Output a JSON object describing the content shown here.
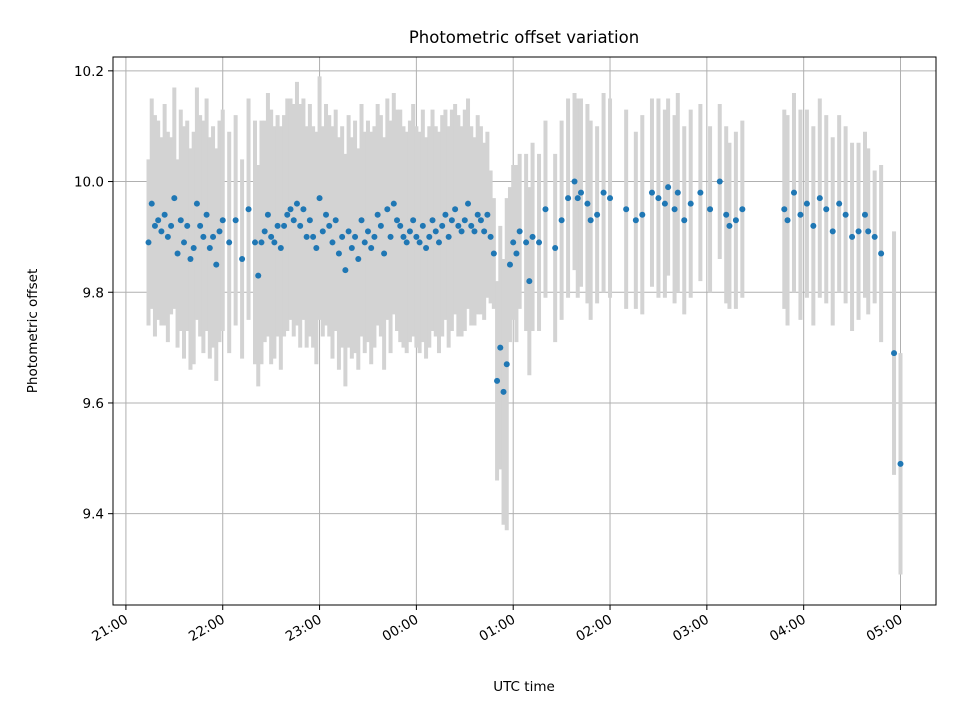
{
  "chart_data": {
    "type": "scatter",
    "title": "Photometric offset variation",
    "xlabel": "UTC time",
    "ylabel": "Photometric offset",
    "x_ticks": [
      {
        "t": "21:00",
        "label": "21:00"
      },
      {
        "t": "22:00",
        "label": "22:00"
      },
      {
        "t": "23:00",
        "label": "23:00"
      },
      {
        "t": "00:00",
        "label": "00:00"
      },
      {
        "t": "01:00",
        "label": "01:00"
      },
      {
        "t": "02:00",
        "label": "02:00"
      },
      {
        "t": "03:00",
        "label": "03:00"
      },
      {
        "t": "04:00",
        "label": "04:00"
      },
      {
        "t": "05:00",
        "label": "05:00"
      }
    ],
    "y_ticks": [
      9.4,
      9.6,
      9.8,
      10.0,
      10.2
    ],
    "xlim": [
      "20:52",
      "05:22"
    ],
    "ylim": [
      9.235,
      10.225
    ],
    "grid": true,
    "marker_color": "#1f77b4",
    "errorbar_color": "#d3d3d3",
    "series": [
      {
        "points": [
          {
            "t": "21:14",
            "y": 9.89,
            "err": 0.15
          },
          {
            "t": "21:16",
            "y": 9.96,
            "err": 0.19
          },
          {
            "t": "21:18",
            "y": 9.92,
            "err": 0.2
          },
          {
            "t": "21:20",
            "y": 9.93,
            "err": 0.18
          },
          {
            "t": "21:22",
            "y": 9.91,
            "err": 0.17
          },
          {
            "t": "21:24",
            "y": 9.94,
            "err": 0.2
          },
          {
            "t": "21:26",
            "y": 9.9,
            "err": 0.19
          },
          {
            "t": "21:28",
            "y": 9.92,
            "err": 0.16
          },
          {
            "t": "21:30",
            "y": 9.97,
            "err": 0.2
          },
          {
            "t": "21:32",
            "y": 9.87,
            "err": 0.17
          },
          {
            "t": "21:34",
            "y": 9.93,
            "err": 0.2
          },
          {
            "t": "21:36",
            "y": 9.89,
            "err": 0.21
          },
          {
            "t": "21:38",
            "y": 9.92,
            "err": 0.19
          },
          {
            "t": "21:40",
            "y": 9.86,
            "err": 0.2
          },
          {
            "t": "21:42",
            "y": 9.88,
            "err": 0.21
          },
          {
            "t": "21:44",
            "y": 9.96,
            "err": 0.21
          },
          {
            "t": "21:46",
            "y": 9.92,
            "err": 0.2
          },
          {
            "t": "21:48",
            "y": 9.9,
            "err": 0.21
          },
          {
            "t": "21:50",
            "y": 9.94,
            "err": 0.21
          },
          {
            "t": "21:52",
            "y": 9.88,
            "err": 0.2
          },
          {
            "t": "21:54",
            "y": 9.9,
            "err": 0.2
          },
          {
            "t": "21:56",
            "y": 9.85,
            "err": 0.21
          },
          {
            "t": "21:58",
            "y": 9.91,
            "err": 0.2
          },
          {
            "t": "22:00",
            "y": 9.93,
            "err": 0.2
          },
          {
            "t": "22:04",
            "y": 9.89,
            "err": 0.2
          },
          {
            "t": "22:08",
            "y": 9.93,
            "err": 0.19
          },
          {
            "t": "22:12",
            "y": 9.86,
            "err": 0.18
          },
          {
            "t": "22:16",
            "y": 9.95,
            "err": 0.2
          },
          {
            "t": "22:20",
            "y": 9.89,
            "err": 0.22
          },
          {
            "t": "22:22",
            "y": 9.83,
            "err": 0.2
          },
          {
            "t": "22:24",
            "y": 9.89,
            "err": 0.22
          },
          {
            "t": "22:26",
            "y": 9.91,
            "err": 0.2
          },
          {
            "t": "22:28",
            "y": 9.94,
            "err": 0.22
          },
          {
            "t": "22:30",
            "y": 9.9,
            "err": 0.23
          },
          {
            "t": "22:32",
            "y": 9.89,
            "err": 0.21
          },
          {
            "t": "22:34",
            "y": 9.92,
            "err": 0.2
          },
          {
            "t": "22:36",
            "y": 9.88,
            "err": 0.22
          },
          {
            "t": "22:38",
            "y": 9.92,
            "err": 0.2
          },
          {
            "t": "22:40",
            "y": 9.94,
            "err": 0.21
          },
          {
            "t": "22:42",
            "y": 9.95,
            "err": 0.2
          },
          {
            "t": "22:44",
            "y": 9.93,
            "err": 0.21
          },
          {
            "t": "22:46",
            "y": 9.96,
            "err": 0.22
          },
          {
            "t": "22:48",
            "y": 9.92,
            "err": 0.22
          },
          {
            "t": "22:50",
            "y": 9.95,
            "err": 0.2
          },
          {
            "t": "22:52",
            "y": 9.9,
            "err": 0.2
          },
          {
            "t": "22:54",
            "y": 9.93,
            "err": 0.21
          },
          {
            "t": "22:56",
            "y": 9.9,
            "err": 0.2
          },
          {
            "t": "22:58",
            "y": 9.88,
            "err": 0.21
          },
          {
            "t": "23:00",
            "y": 9.97,
            "err": 0.22
          },
          {
            "t": "23:02",
            "y": 9.91,
            "err": 0.19
          },
          {
            "t": "23:04",
            "y": 9.94,
            "err": 0.2
          },
          {
            "t": "23:06",
            "y": 9.92,
            "err": 0.2
          },
          {
            "t": "23:08",
            "y": 9.89,
            "err": 0.21
          },
          {
            "t": "23:10",
            "y": 9.93,
            "err": 0.2
          },
          {
            "t": "23:12",
            "y": 9.87,
            "err": 0.21
          },
          {
            "t": "23:14",
            "y": 9.9,
            "err": 0.2
          },
          {
            "t": "23:16",
            "y": 9.84,
            "err": 0.21
          },
          {
            "t": "23:18",
            "y": 9.91,
            "err": 0.21
          },
          {
            "t": "23:20",
            "y": 9.88,
            "err": 0.2
          },
          {
            "t": "23:22",
            "y": 9.9,
            "err": 0.21
          },
          {
            "t": "23:24",
            "y": 9.86,
            "err": 0.2
          },
          {
            "t": "23:26",
            "y": 9.93,
            "err": 0.21
          },
          {
            "t": "23:28",
            "y": 9.89,
            "err": 0.2
          },
          {
            "t": "23:30",
            "y": 9.91,
            "err": 0.2
          },
          {
            "t": "23:32",
            "y": 9.88,
            "err": 0.21
          },
          {
            "t": "23:34",
            "y": 9.9,
            "err": 0.2
          },
          {
            "t": "23:36",
            "y": 9.94,
            "err": 0.2
          },
          {
            "t": "23:38",
            "y": 9.92,
            "err": 0.2
          },
          {
            "t": "23:40",
            "y": 9.87,
            "err": 0.21
          },
          {
            "t": "23:42",
            "y": 9.95,
            "err": 0.2
          },
          {
            "t": "23:44",
            "y": 9.9,
            "err": 0.21
          },
          {
            "t": "23:46",
            "y": 9.96,
            "err": 0.2
          },
          {
            "t": "23:48",
            "y": 9.93,
            "err": 0.2
          },
          {
            "t": "23:50",
            "y": 9.92,
            "err": 0.21
          },
          {
            "t": "23:52",
            "y": 9.9,
            "err": 0.2
          },
          {
            "t": "23:54",
            "y": 9.89,
            "err": 0.2
          },
          {
            "t": "23:56",
            "y": 9.91,
            "err": 0.2
          },
          {
            "t": "23:58",
            "y": 9.93,
            "err": 0.21
          },
          {
            "t": "00:00",
            "y": 9.9,
            "err": 0.2
          },
          {
            "t": "00:02",
            "y": 9.89,
            "err": 0.2
          },
          {
            "t": "00:04",
            "y": 9.92,
            "err": 0.21
          },
          {
            "t": "00:06",
            "y": 9.88,
            "err": 0.2
          },
          {
            "t": "00:08",
            "y": 9.9,
            "err": 0.2
          },
          {
            "t": "00:10",
            "y": 9.93,
            "err": 0.2
          },
          {
            "t": "00:12",
            "y": 9.91,
            "err": 0.19
          },
          {
            "t": "00:14",
            "y": 9.89,
            "err": 0.2
          },
          {
            "t": "00:16",
            "y": 9.92,
            "err": 0.2
          },
          {
            "t": "00:18",
            "y": 9.94,
            "err": 0.19
          },
          {
            "t": "00:20",
            "y": 9.9,
            "err": 0.2
          },
          {
            "t": "00:22",
            "y": 9.93,
            "err": 0.2
          },
          {
            "t": "00:24",
            "y": 9.95,
            "err": 0.19
          },
          {
            "t": "00:26",
            "y": 9.92,
            "err": 0.2
          },
          {
            "t": "00:28",
            "y": 9.91,
            "err": 0.19
          },
          {
            "t": "00:30",
            "y": 9.93,
            "err": 0.2
          },
          {
            "t": "00:32",
            "y": 9.96,
            "err": 0.19
          },
          {
            "t": "00:34",
            "y": 9.92,
            "err": 0.18
          },
          {
            "t": "00:36",
            "y": 9.91,
            "err": 0.17
          },
          {
            "t": "00:38",
            "y": 9.94,
            "err": 0.18
          },
          {
            "t": "00:40",
            "y": 9.93,
            "err": 0.17
          },
          {
            "t": "00:42",
            "y": 9.91,
            "err": 0.16
          },
          {
            "t": "00:44",
            "y": 9.94,
            "err": 0.15
          },
          {
            "t": "00:46",
            "y": 9.9,
            "err": 0.12
          },
          {
            "t": "00:48",
            "y": 9.87,
            "err": 0.1
          },
          {
            "t": "00:50",
            "y": 9.64,
            "err": 0.18
          },
          {
            "t": "00:52",
            "y": 9.7,
            "err": 0.22
          },
          {
            "t": "00:54",
            "y": 9.62,
            "err": 0.24
          },
          {
            "t": "00:56",
            "y": 9.67,
            "err": 0.3
          },
          {
            "t": "00:58",
            "y": 9.85,
            "err": 0.14
          },
          {
            "t": "01:00",
            "y": 9.89,
            "err": 0.14
          },
          {
            "t": "01:02",
            "y": 9.87,
            "err": 0.16
          },
          {
            "t": "01:04",
            "y": 9.91,
            "err": 0.14
          },
          {
            "t": "01:08",
            "y": 9.89,
            "err": 0.16
          },
          {
            "t": "01:10",
            "y": 9.82,
            "err": 0.17
          },
          {
            "t": "01:12",
            "y": 9.9,
            "err": 0.17
          },
          {
            "t": "01:16",
            "y": 9.89,
            "err": 0.16
          },
          {
            "t": "01:20",
            "y": 9.95,
            "err": 0.16
          },
          {
            "t": "01:26",
            "y": 9.88,
            "err": 0.17
          },
          {
            "t": "01:30",
            "y": 9.93,
            "err": 0.18
          },
          {
            "t": "01:34",
            "y": 9.97,
            "err": 0.18
          },
          {
            "t": "01:38",
            "y": 10.0,
            "err": 0.16
          },
          {
            "t": "01:40",
            "y": 9.97,
            "err": 0.18
          },
          {
            "t": "01:42",
            "y": 9.98,
            "err": 0.17
          },
          {
            "t": "01:46",
            "y": 9.96,
            "err": 0.18
          },
          {
            "t": "01:48",
            "y": 9.93,
            "err": 0.18
          },
          {
            "t": "01:52",
            "y": 9.94,
            "err": 0.16
          },
          {
            "t": "01:56",
            "y": 9.98,
            "err": 0.18
          },
          {
            "t": "02:00",
            "y": 9.97,
            "err": 0.18
          },
          {
            "t": "02:10",
            "y": 9.95,
            "err": 0.18
          },
          {
            "t": "02:16",
            "y": 9.93,
            "err": 0.16
          },
          {
            "t": "02:20",
            "y": 9.94,
            "err": 0.18
          },
          {
            "t": "02:26",
            "y": 9.98,
            "err": 0.17
          },
          {
            "t": "02:30",
            "y": 9.97,
            "err": 0.18
          },
          {
            "t": "02:34",
            "y": 9.96,
            "err": 0.17
          },
          {
            "t": "02:36",
            "y": 9.99,
            "err": 0.16
          },
          {
            "t": "02:40",
            "y": 9.95,
            "err": 0.17
          },
          {
            "t": "02:42",
            "y": 9.98,
            "err": 0.18
          },
          {
            "t": "02:46",
            "y": 9.93,
            "err": 0.17
          },
          {
            "t": "02:50",
            "y": 9.96,
            "err": 0.17
          },
          {
            "t": "02:56",
            "y": 9.98,
            "err": 0.16
          },
          {
            "t": "03:02",
            "y": 9.95,
            "err": 0.15
          },
          {
            "t": "03:08",
            "y": 10.0,
            "err": 0.14
          },
          {
            "t": "03:12",
            "y": 9.94,
            "err": 0.16
          },
          {
            "t": "03:14",
            "y": 9.92,
            "err": 0.15
          },
          {
            "t": "03:18",
            "y": 9.93,
            "err": 0.16
          },
          {
            "t": "03:22",
            "y": 9.95,
            "err": 0.16
          },
          {
            "t": "03:48",
            "y": 9.95,
            "err": 0.18
          },
          {
            "t": "03:50",
            "y": 9.93,
            "err": 0.19
          },
          {
            "t": "03:54",
            "y": 9.98,
            "err": 0.18
          },
          {
            "t": "03:58",
            "y": 9.94,
            "err": 0.19
          },
          {
            "t": "04:02",
            "y": 9.96,
            "err": 0.17
          },
          {
            "t": "04:06",
            "y": 9.92,
            "err": 0.18
          },
          {
            "t": "04:10",
            "y": 9.97,
            "err": 0.18
          },
          {
            "t": "04:14",
            "y": 9.95,
            "err": 0.17
          },
          {
            "t": "04:18",
            "y": 9.91,
            "err": 0.17
          },
          {
            "t": "04:22",
            "y": 9.96,
            "err": 0.16
          },
          {
            "t": "04:26",
            "y": 9.94,
            "err": 0.16
          },
          {
            "t": "04:30",
            "y": 9.9,
            "err": 0.17
          },
          {
            "t": "04:34",
            "y": 9.91,
            "err": 0.16
          },
          {
            "t": "04:38",
            "y": 9.94,
            "err": 0.15
          },
          {
            "t": "04:40",
            "y": 9.91,
            "err": 0.15
          },
          {
            "t": "04:44",
            "y": 9.9,
            "err": 0.12
          },
          {
            "t": "04:48",
            "y": 9.87,
            "err": 0.16
          },
          {
            "t": "04:56",
            "y": 9.69,
            "err": 0.22
          },
          {
            "t": "05:00",
            "y": 9.49,
            "err": 0.2
          }
        ]
      }
    ]
  }
}
